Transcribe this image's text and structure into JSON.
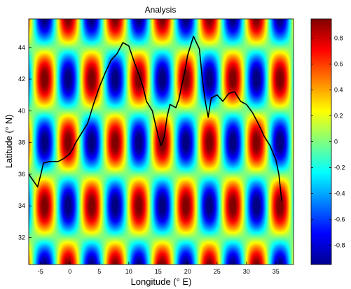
{
  "chart_data": {
    "type": "heatmap",
    "title": "Analysis",
    "xlabel": "Longitude (° E)",
    "ylabel": "Latitude (° N)",
    "xlim": [
      -7,
      38
    ],
    "ylim": [
      30.3,
      45.8
    ],
    "x_ticks": [
      -5,
      0,
      5,
      10,
      15,
      20,
      25,
      30,
      35
    ],
    "x_tick_labels": [
      "-5",
      "0",
      "5",
      "10",
      "15",
      "20",
      "25",
      "30",
      "35"
    ],
    "y_ticks": [
      32,
      34,
      36,
      38,
      40,
      42,
      44
    ],
    "y_tick_labels": [
      "32",
      "34",
      "36",
      "38",
      "40",
      "42",
      "44"
    ],
    "colorbar": {
      "colormap": "jet",
      "range": [
        -0.95,
        0.95
      ],
      "ticks": [
        -0.8,
        -0.6,
        -0.4,
        -0.2,
        0,
        0.2,
        0.4,
        0.6,
        0.8
      ],
      "tick_labels": [
        "-0.8",
        "-0.6",
        "-0.4",
        "-0.2",
        "0",
        "0.2",
        "0.4",
        "0.6",
        "0.8"
      ]
    },
    "field": {
      "description": "sin(k_lon * lon + phase_lon) * sin(k_lat * lat + phase_lat)",
      "lon_period_deg": 8,
      "lon_peak_positive_deg": -0.3,
      "lat_period_deg": 8,
      "lat_peak_positive_deg": 38
    },
    "coastline": {
      "color": "#000000",
      "lon": [
        -7,
        -5.5,
        -5,
        -4.5,
        -3.5,
        -2,
        -1,
        0,
        0.5,
        1,
        2,
        3,
        3.5,
        4,
        5,
        6,
        7,
        8,
        9,
        10,
        11,
        12,
        12.5,
        13,
        14,
        15,
        15.5,
        16,
        16.5,
        17,
        18,
        18.5,
        19,
        19.5,
        20,
        21,
        22,
        22.5,
        23,
        23.5,
        24,
        25,
        26,
        27,
        28,
        29,
        30,
        31,
        32,
        33,
        34,
        35,
        35.5,
        36
      ],
      "lat": [
        36,
        35.2,
        35.9,
        36.7,
        36.8,
        36.8,
        37.0,
        37.3,
        37.6,
        38.0,
        38.6,
        39.2,
        39.8,
        40.4,
        41.5,
        42.4,
        43.2,
        43.6,
        44.3,
        44.1,
        43.0,
        42.0,
        41.4,
        40.6,
        40.0,
        38.4,
        37.8,
        38.3,
        39.6,
        40.4,
        40.2,
        40.7,
        41.6,
        42.4,
        43.5,
        44.7,
        43.9,
        42.0,
        40.6,
        39.6,
        40.8,
        41.0,
        40.6,
        41.1,
        41.2,
        40.6,
        40.4,
        39.9,
        39.2,
        38.4,
        37.8,
        36.9,
        36.0,
        34.3
      ]
    }
  }
}
